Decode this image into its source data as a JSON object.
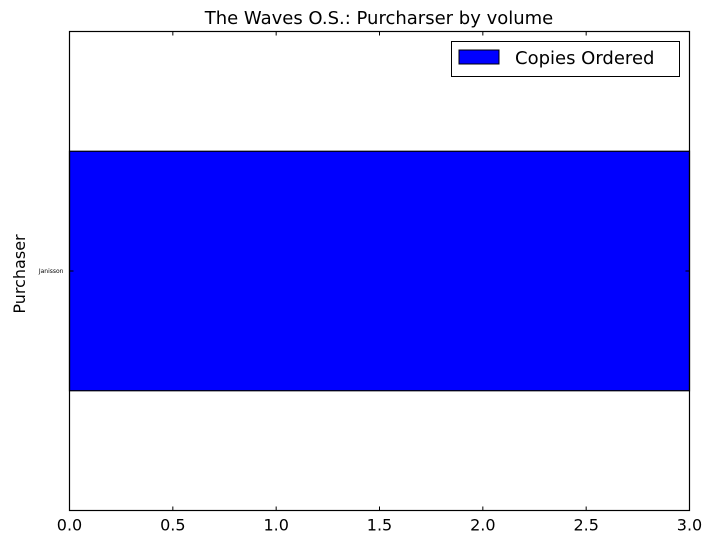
{
  "chart_data": {
    "type": "bar",
    "orientation": "horizontal",
    "title": "The Waves O.S.: Purcharser by volume",
    "xlabel": "",
    "ylabel": "Purchaser",
    "categories": [
      "Janisson"
    ],
    "series": [
      {
        "name": "Copies Ordered",
        "values": [
          3.0
        ]
      }
    ],
    "xlim": [
      0.0,
      3.0
    ],
    "xticks": [
      "0.0",
      "0.5",
      "1.0",
      "1.5",
      "2.0",
      "2.5",
      "3.0"
    ],
    "grid": false,
    "legend_position": "top-right",
    "bar_color": "#0000ff",
    "edge_color": "#000000"
  }
}
